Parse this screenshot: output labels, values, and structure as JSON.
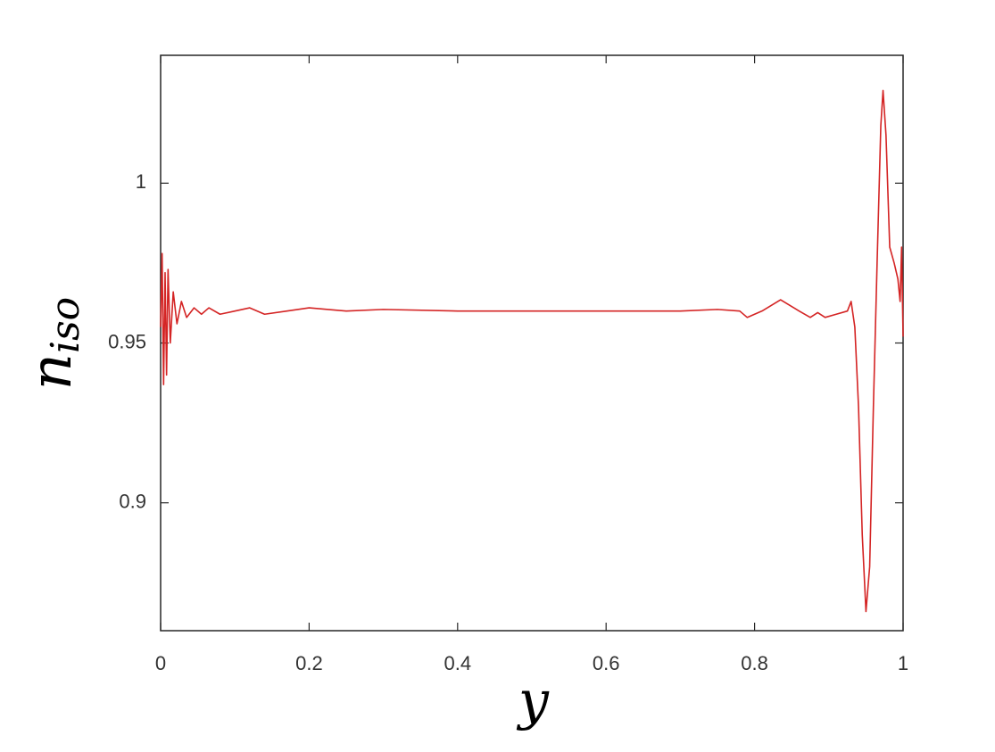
{
  "chart_data": {
    "type": "line",
    "xlabel": "y",
    "ylabel": "n",
    "ylabel_subscript": "iso",
    "x": [
      0,
      0.002,
      0.004,
      0.006,
      0.008,
      0.01,
      0.013,
      0.017,
      0.022,
      0.028,
      0.035,
      0.045,
      0.055,
      0.065,
      0.08,
      0.1,
      0.12,
      0.14,
      0.17,
      0.2,
      0.25,
      0.3,
      0.4,
      0.5,
      0.6,
      0.7,
      0.75,
      0.78,
      0.79,
      0.81,
      0.835,
      0.86,
      0.875,
      0.885,
      0.895,
      0.91,
      0.925,
      0.93,
      0.935,
      0.94,
      0.945,
      0.95,
      0.955,
      0.96,
      0.965,
      0.97,
      0.973,
      0.977,
      0.982,
      0.988,
      0.993,
      0.996,
      0.998,
      1.0
    ],
    "series": [
      {
        "color": "#d42424",
        "values": [
          0.955,
          0.978,
          0.937,
          0.972,
          0.94,
          0.973,
          0.95,
          0.966,
          0.956,
          0.963,
          0.958,
          0.961,
          0.959,
          0.961,
          0.959,
          0.96,
          0.961,
          0.959,
          0.96,
          0.961,
          0.96,
          0.9605,
          0.96,
          0.96,
          0.96,
          0.96,
          0.9605,
          0.96,
          0.958,
          0.96,
          0.9635,
          0.96,
          0.958,
          0.9595,
          0.958,
          0.959,
          0.96,
          0.963,
          0.955,
          0.93,
          0.89,
          0.866,
          0.88,
          0.93,
          0.975,
          1.018,
          1.029,
          1.015,
          0.98,
          0.975,
          0.97,
          0.963,
          0.98,
          0.952
        ]
      }
    ],
    "xlim": [
      0,
      1
    ],
    "xticks": [
      0,
      0.2,
      0.4,
      0.6,
      0.8,
      1
    ],
    "ylim": [
      0.86,
      1.04
    ],
    "yticks": [
      0.9,
      0.95,
      1
    ]
  }
}
